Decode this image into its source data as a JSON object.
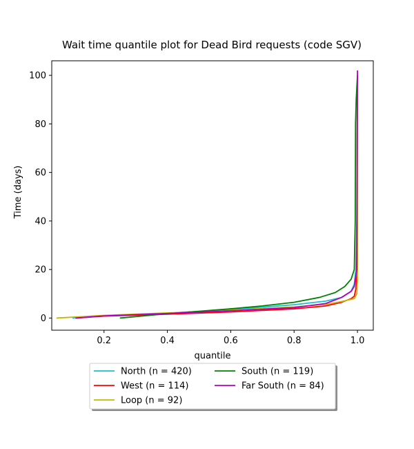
{
  "chart_data": {
    "type": "line",
    "title": "Wait time quantile plot for Dead Bird  requests (code SGV)",
    "xlabel": "quantile",
    "ylabel": "Time (days)",
    "xlim": [
      0.035,
      1.05
    ],
    "ylim": [
      -5,
      106
    ],
    "xticks": [
      0.2,
      0.4,
      0.6,
      0.8,
      1.0
    ],
    "xtick_labels": [
      "0.2",
      "0.4",
      "0.6",
      "0.8",
      "1.0"
    ],
    "yticks": [
      0,
      20,
      40,
      60,
      80,
      100
    ],
    "ytick_labels": [
      "0",
      "20",
      "40",
      "60",
      "80",
      "100"
    ],
    "grid": false,
    "legend": {
      "placement": "below-center",
      "columns": 2,
      "shadow": true
    },
    "series": [
      {
        "name": "North (n = 420)",
        "color": "#17becf",
        "points": [
          [
            0.1,
            0
          ],
          [
            0.2,
            0.8
          ],
          [
            0.4,
            2
          ],
          [
            0.6,
            3.5
          ],
          [
            0.8,
            5.5
          ],
          [
            0.9,
            7
          ],
          [
            0.95,
            8.5
          ],
          [
            0.98,
            11
          ],
          [
            0.99,
            14
          ],
          [
            0.995,
            20
          ],
          [
            0.998,
            40
          ],
          [
            1.0,
            100
          ]
        ]
      },
      {
        "name": "West (n = 114)",
        "color": "#ff0000",
        "points": [
          [
            0.11,
            0
          ],
          [
            0.2,
            0.8
          ],
          [
            0.4,
            1.6
          ],
          [
            0.6,
            2.5
          ],
          [
            0.8,
            3.8
          ],
          [
            0.9,
            5
          ],
          [
            0.95,
            6.5
          ],
          [
            0.98,
            8
          ],
          [
            0.99,
            9
          ],
          [
            0.995,
            12
          ],
          [
            0.998,
            20
          ],
          [
            1.0,
            100
          ]
        ]
      },
      {
        "name": "Loop (n = 92)",
        "color": "#c8b400",
        "points": [
          [
            0.05,
            0
          ],
          [
            0.2,
            1.1
          ],
          [
            0.4,
            2.1
          ],
          [
            0.6,
            3.2
          ],
          [
            0.8,
            4.6
          ],
          [
            0.9,
            5.6
          ],
          [
            0.95,
            6.8
          ],
          [
            0.99,
            8
          ],
          [
            0.998,
            10
          ],
          [
            1.0,
            16
          ],
          [
            1.0,
            100
          ]
        ]
      },
      {
        "name": "South (n = 119)",
        "color": "#008000",
        "points": [
          [
            0.25,
            0
          ],
          [
            0.4,
            1.8
          ],
          [
            0.6,
            3.8
          ],
          [
            0.7,
            5
          ],
          [
            0.8,
            6.5
          ],
          [
            0.88,
            8.5
          ],
          [
            0.93,
            10.5
          ],
          [
            0.96,
            13
          ],
          [
            0.98,
            16
          ],
          [
            0.99,
            20
          ],
          [
            0.993,
            40
          ],
          [
            0.994,
            80
          ],
          [
            0.996,
            90
          ],
          [
            1.0,
            100
          ]
        ]
      },
      {
        "name": "Far South (n = 84)",
        "color": "#b000c0",
        "points": [
          [
            0.11,
            0
          ],
          [
            0.2,
            0.9
          ],
          [
            0.4,
            1.9
          ],
          [
            0.6,
            3
          ],
          [
            0.8,
            4.3
          ],
          [
            0.9,
            6
          ],
          [
            0.95,
            8.5
          ],
          [
            0.98,
            11
          ],
          [
            0.99,
            13
          ],
          [
            0.998,
            20
          ],
          [
            1.0,
            102
          ]
        ]
      }
    ]
  }
}
